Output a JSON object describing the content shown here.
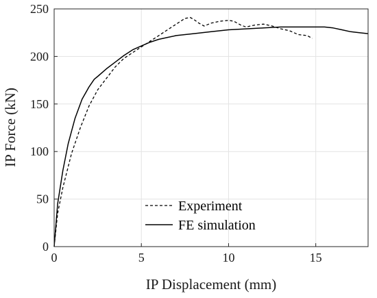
{
  "chart_data": {
    "type": "line",
    "xlabel": "IP Displacement (mm)",
    "ylabel": "IP Force (kN)",
    "xlim": [
      0,
      18
    ],
    "ylim": [
      0,
      250
    ],
    "xticks": [
      0,
      5,
      10,
      15
    ],
    "yticks": [
      0,
      50,
      100,
      150,
      200,
      250
    ],
    "grid": true,
    "legend_position": "bottom-center",
    "series": [
      {
        "name": "Experiment",
        "style": "dashed",
        "color": "#000000",
        "x": [
          0,
          0.2,
          0.5,
          1.0,
          1.5,
          2.0,
          2.5,
          3.0,
          3.5,
          4.0,
          4.5,
          5.0,
          5.5,
          6.0,
          6.5,
          7.0,
          7.5,
          7.8,
          8.0,
          8.3,
          8.6,
          9.0,
          9.5,
          10.0,
          10.3,
          10.7,
          11.0,
          11.5,
          12.0,
          12.5,
          13.0,
          13.5,
          14.0,
          14.5,
          14.8
        ],
        "y": [
          0,
          35,
          62,
          98,
          125,
          148,
          165,
          177,
          189,
          198,
          204,
          210,
          216,
          222,
          228,
          234,
          240,
          241,
          239,
          235,
          232,
          235,
          237,
          238,
          237,
          233,
          231,
          233,
          234,
          232,
          229,
          227,
          223,
          222,
          219
        ]
      },
      {
        "name": "FE simulation",
        "style": "solid",
        "color": "#000000",
        "x": [
          0,
          0.2,
          0.5,
          0.8,
          1.2,
          1.6,
          2.0,
          2.3,
          2.5,
          3.0,
          3.5,
          4.0,
          4.5,
          5.0,
          5.5,
          6.0,
          6.5,
          7.0,
          8.0,
          9.0,
          10.0,
          11.0,
          12.0,
          13.0,
          14.0,
          15.0,
          15.5,
          16.0,
          16.5,
          17.0,
          17.5,
          18.0
        ],
        "y": [
          0,
          45,
          80,
          108,
          135,
          155,
          168,
          176,
          179,
          187,
          194,
          201,
          207,
          211,
          215,
          218,
          220,
          222,
          224,
          226,
          228,
          229,
          230,
          231,
          231,
          231,
          231,
          230,
          228,
          226,
          225,
          224
        ]
      }
    ]
  }
}
